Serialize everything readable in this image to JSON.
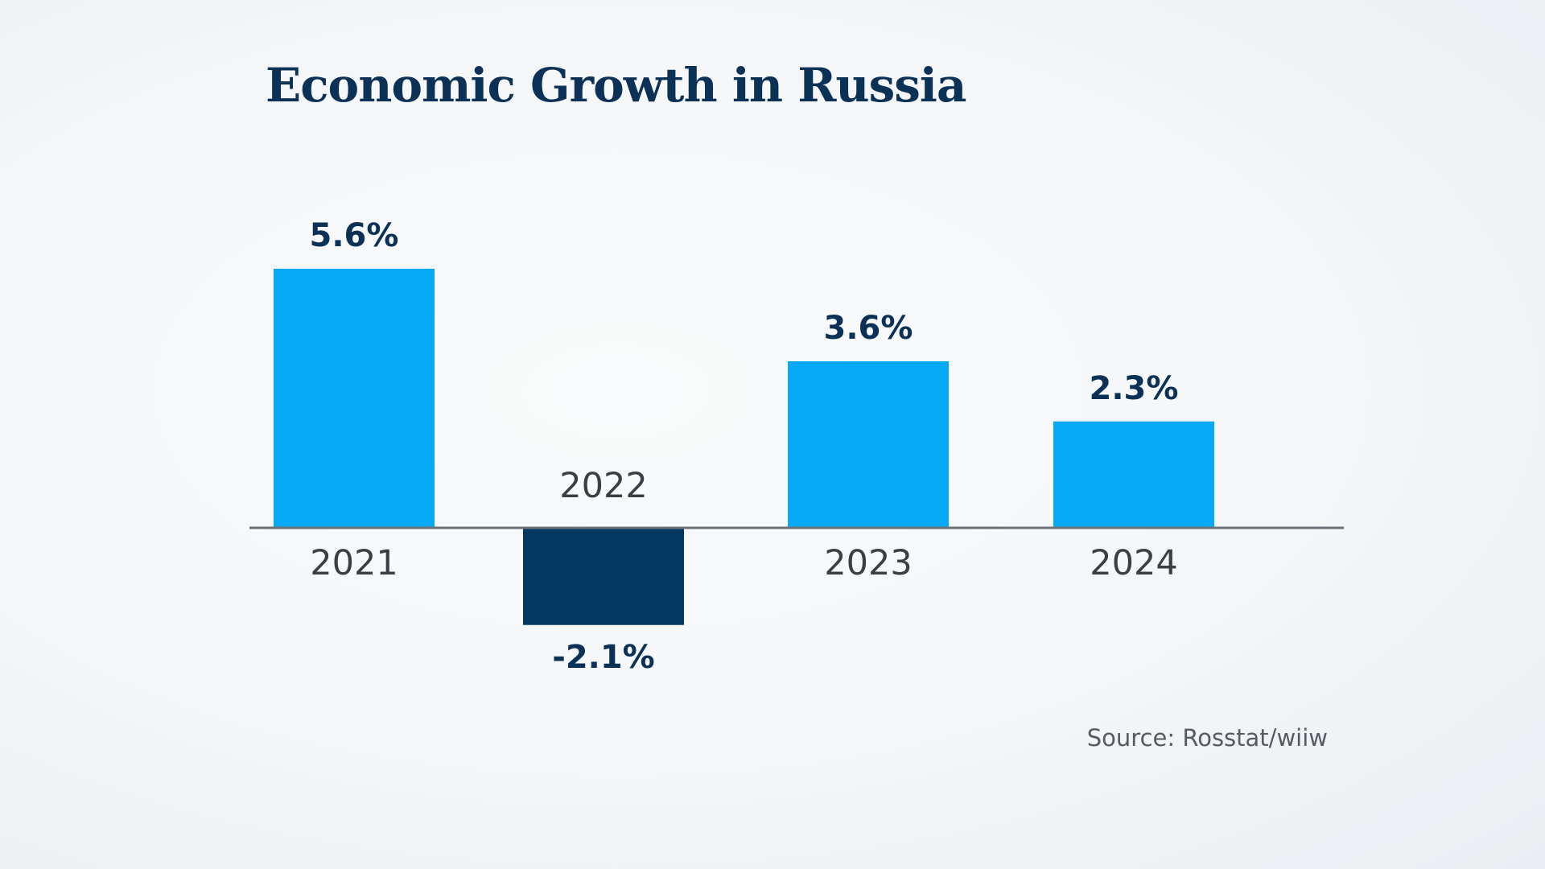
{
  "chart_data": {
    "type": "bar",
    "title": "Economic Growth in Russia",
    "categories": [
      "2021",
      "2022",
      "2023",
      "2024"
    ],
    "values": [
      5.6,
      -2.1,
      3.6,
      2.3
    ],
    "value_labels": [
      "5.6%",
      "-2.1%",
      "3.6%",
      "2.3%"
    ],
    "xlabel": "",
    "ylabel": "",
    "ylim": [
      -2.1,
      5.6
    ],
    "grid": false,
    "legend": "none",
    "source": "Source: Rosstat/wiiw"
  },
  "colors": {
    "positive_bar": "#05a9f5",
    "negative_bar": "#033862",
    "value_text": "#0b3156",
    "category_text": "#3a3f45",
    "axis_line": "#6b7178"
  }
}
